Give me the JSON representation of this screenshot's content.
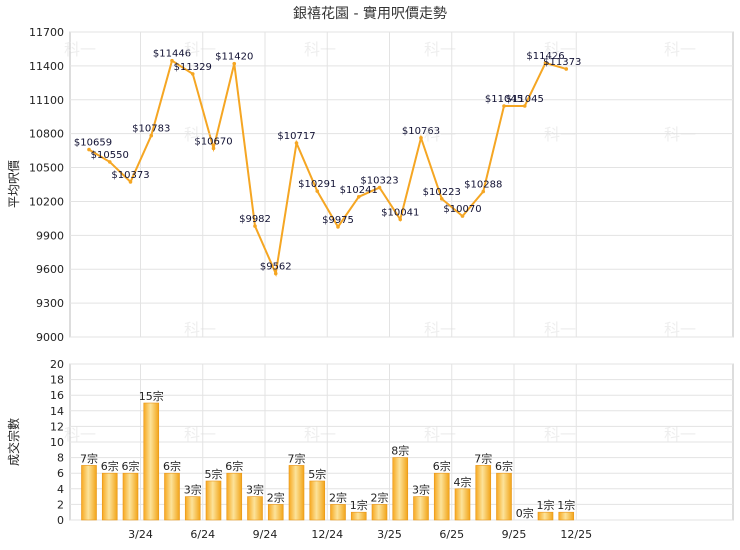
{
  "chart_data": [
    {
      "type": "line",
      "title": "銀禧花園 - 實用呎價走勢",
      "ylabel": "平均呎價",
      "xlabel": "",
      "ylim": [
        9000,
        11700
      ],
      "yticks": [
        "9000",
        "9300",
        "9600",
        "9900",
        "10200",
        "10500",
        "10800",
        "11100",
        "11400",
        "11700"
      ],
      "grid": true,
      "line_color": "#F5A623",
      "series": [
        {
          "values": [
            10659,
            10550,
            10373,
            10783,
            11446,
            11329,
            10670,
            11420,
            9982,
            9562,
            10717,
            10291,
            9975,
            10241,
            10323,
            10041,
            10763,
            10223,
            10070,
            10288,
            11045,
            11045,
            11426,
            11373
          ],
          "labels": [
            "$10659",
            "$10550",
            "$10373",
            "$10783",
            "$11446",
            "$11329",
            "$10670",
            "$11420",
            "$9982",
            "$9562",
            "$10717",
            "$10291",
            "$9975",
            "$10241",
            "$10323",
            "$10041",
            "$10763",
            "$10223",
            "$10070",
            "$10288",
            "$11045",
            "$11045",
            "$11426",
            "$11373"
          ]
        }
      ]
    },
    {
      "type": "bar",
      "ylabel": "成交宗數",
      "xlabel": "",
      "ylim": [
        0,
        20
      ],
      "yticks": [
        "0",
        "2",
        "4",
        "6",
        "8",
        "10",
        "12",
        "14",
        "16",
        "18",
        "20"
      ],
      "categories": [
        "3/24",
        "6/24",
        "9/24",
        "12/24",
        "3/25",
        "6/25",
        "9/25",
        "12/25"
      ],
      "grid": true,
      "bar_color": "#F5B52E",
      "values": [
        7,
        6,
        6,
        15,
        6,
        3,
        5,
        6,
        3,
        2,
        7,
        5,
        2,
        1,
        2,
        8,
        3,
        6,
        4,
        7,
        6,
        0,
        1,
        1
      ],
      "labels": [
        "7宗",
        "6宗",
        "6宗",
        "15宗",
        "6宗",
        "3宗",
        "5宗",
        "6宗",
        "3宗",
        "2宗",
        "7宗",
        "5宗",
        "2宗",
        "1宗",
        "2宗",
        "8宗",
        "3宗",
        "6宗",
        "4宗",
        "7宗",
        "6宗",
        "0宗",
        "1宗",
        "1宗"
      ]
    }
  ],
  "watermark": "科一"
}
